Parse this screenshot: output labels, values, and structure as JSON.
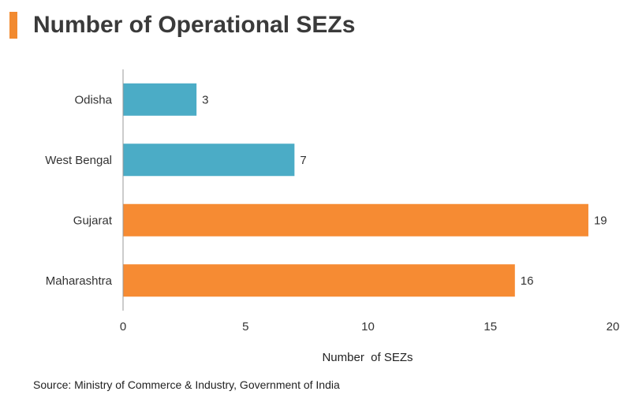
{
  "page": {
    "title": "Number of Operational SEZs",
    "source": "Source: Ministry of Commerce & Industry, Government of India"
  },
  "colors": {
    "accent": "#f28a30",
    "blue": "#4bacc6",
    "orange": "#f68b33"
  },
  "chart_data": {
    "type": "bar",
    "orientation": "horizontal",
    "categories": [
      "Odisha",
      "West Bengal",
      "Gujarat",
      "Maharashtra"
    ],
    "values": [
      3,
      7,
      19,
      16
    ],
    "bar_colors": [
      "#4bacc6",
      "#4bacc6",
      "#f68b33",
      "#f68b33"
    ],
    "xlabel": "Number  of SEZs",
    "ylabel": "",
    "xlim": [
      0,
      20
    ],
    "xticks": [
      0,
      5,
      10,
      15,
      20
    ],
    "grid": false,
    "legend": "none"
  }
}
